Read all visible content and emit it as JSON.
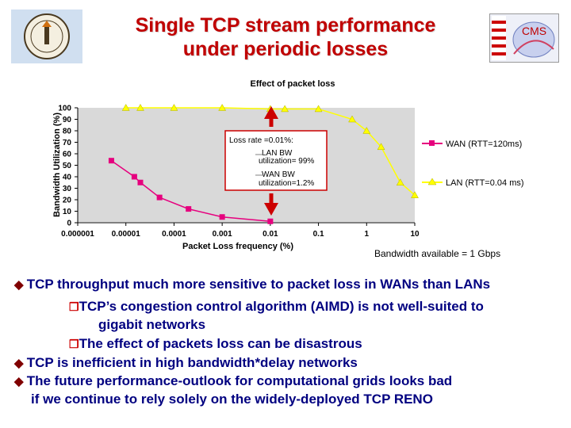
{
  "slide": {
    "title_lines": [
      "Single TCP stream performance",
      "under periodic losses"
    ],
    "logos": [
      {
        "name": "caltech-seal",
        "text": "CALIFORNIA INSTITUTE OF TECHNOLOGY"
      },
      {
        "name": "cms-logo",
        "text": "CMS"
      }
    ],
    "bandwidth_note": "Bandwidth available = 1 Gbps",
    "bullets": [
      {
        "level": 1,
        "marker": "u",
        "text": "TCP throughput much more sensitive to packet loss in WANs than LANs"
      },
      {
        "level": 2,
        "marker": "r",
        "text": "TCP’s congestion control algorithm (AIMD) is not well-suited to"
      },
      {
        "level": 2,
        "marker": "",
        "text": "gigabit networks"
      },
      {
        "level": 2,
        "marker": "r",
        "text": "The effect of packets loss can be disastrous"
      },
      {
        "level": 1,
        "marker": "u",
        "text": "TCP is inefficient in high bandwidth*delay networks"
      },
      {
        "level": 1,
        "marker": "u",
        "text": "The future performance-outlook for computational grids looks bad"
      },
      {
        "level": 1,
        "marker": "",
        "text": "if we continue to rely solely on the widely-deployed TCP RENO"
      }
    ]
  },
  "chart_data": {
    "type": "line",
    "title": "Effect of packet loss",
    "xlabel": "Packet Loss frequency (%)",
    "ylabel": "Bandwidth Utilization (%)",
    "x_scale": "log",
    "x_ticks": [
      "0.000001",
      "0.00001",
      "0.0001",
      "0.001",
      "0.01",
      "0.1",
      "1",
      "10"
    ],
    "y_ticks": [
      "0",
      "10",
      "20",
      "30",
      "40",
      "50",
      "60",
      "70",
      "80",
      "90",
      "100"
    ],
    "ylim": [
      0,
      100
    ],
    "grid": false,
    "legend_position": "right",
    "series": [
      {
        "name": "WAN (RTT=120ms)",
        "color": "#e6007e",
        "marker": "square",
        "points": [
          [
            5e-06,
            54
          ],
          [
            1.5e-05,
            40
          ],
          [
            2e-05,
            35
          ],
          [
            5e-05,
            22
          ],
          [
            0.0002,
            12
          ],
          [
            0.001,
            5
          ],
          [
            0.01,
            1.2
          ]
        ]
      },
      {
        "name": "LAN (RTT=0.04 ms)",
        "color": "#ffff00",
        "marker": "triangle",
        "points": [
          [
            1e-05,
            100
          ],
          [
            2e-05,
            100
          ],
          [
            0.0001,
            100
          ],
          [
            0.001,
            100
          ],
          [
            0.01,
            99
          ],
          [
            0.02,
            99
          ],
          [
            0.1,
            99
          ],
          [
            0.5,
            90
          ],
          [
            1,
            80
          ],
          [
            2,
            66
          ],
          [
            5,
            35
          ],
          [
            10,
            24
          ]
        ]
      }
    ],
    "annotation": {
      "lines": [
        "Loss rate =0.01%:",
        "LAN BW",
        "utilization= 99%",
        "WAN BW",
        "utilization=1.2%"
      ],
      "border_color": "#cc0000",
      "arrow_color": "#cc0000"
    }
  }
}
